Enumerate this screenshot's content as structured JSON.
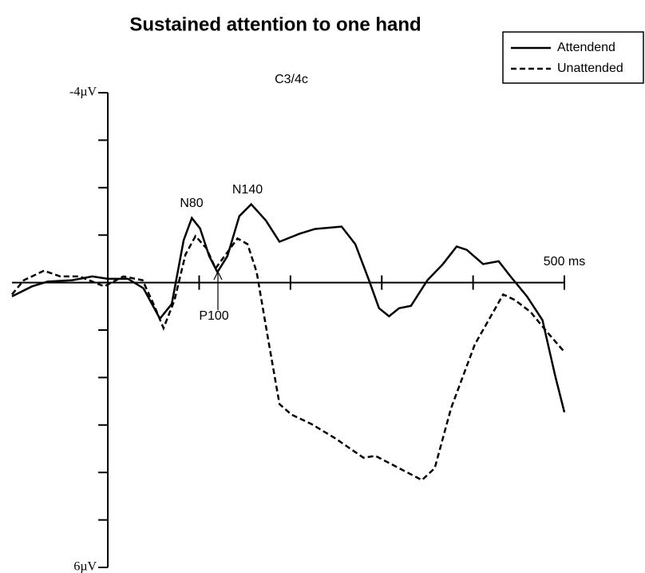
{
  "chart_data": {
    "type": "line",
    "title": "Sustained attention to one hand",
    "subtitle": "C3/4c",
    "y_inverted": true,
    "ylim": [
      -4,
      6
    ],
    "yticks": [
      {
        "value": -4,
        "label": "-4µV"
      },
      {
        "value": 6,
        "label": "6µV"
      }
    ],
    "yminorticks": [
      -3,
      -2,
      -1,
      0,
      1,
      2,
      3,
      4,
      5
    ],
    "xlim": [
      -105,
      500
    ],
    "xticks": [
      {
        "value": 500,
        "label": "500 ms"
      }
    ],
    "xminorticks": [
      100,
      200,
      300,
      400
    ],
    "legend": "top-right",
    "annotations": [
      "N80",
      "N140",
      "P100"
    ],
    "series": [
      {
        "name": "Attendend",
        "color": "#000000",
        "dash": false,
        "x": [
          -105,
          -83,
          -66,
          -39,
          -17,
          0,
          22,
          39,
          57,
          70,
          83,
          92,
          101,
          111,
          120,
          131,
          144,
          157,
          173,
          188,
          210,
          227,
          256,
          271,
          286,
          297,
          308,
          319,
          332,
          350,
          367,
          382,
          393,
          411,
          428,
          441,
          459,
          476,
          490,
          500
        ],
        "values": [
          0.29,
          0.08,
          -0.02,
          -0.05,
          -0.13,
          -0.08,
          -0.08,
          0.12,
          0.76,
          0.45,
          -0.89,
          -1.36,
          -1.14,
          -0.56,
          -0.22,
          -0.56,
          -1.4,
          -1.65,
          -1.31,
          -0.86,
          -1.03,
          -1.13,
          -1.18,
          -0.81,
          -0.05,
          0.54,
          0.71,
          0.54,
          0.49,
          -0.05,
          -0.39,
          -0.76,
          -0.69,
          -0.39,
          -0.45,
          -0.13,
          0.29,
          0.79,
          1.97,
          2.73
        ]
      },
      {
        "name": "Unattended",
        "color": "#000000",
        "dash": true,
        "x": [
          -105,
          -92,
          -70,
          -52,
          -31,
          -4,
          17,
          38,
          50,
          61,
          73,
          85,
          96,
          108,
          118,
          131,
          142,
          153,
          163,
          175,
          188,
          201,
          223,
          249,
          280,
          293,
          319,
          344,
          358,
          376,
          402,
          433,
          446,
          463,
          481,
          500
        ],
        "values": [
          0.25,
          -0.05,
          -0.25,
          -0.13,
          -0.13,
          0.08,
          -0.13,
          -0.05,
          0.45,
          0.96,
          0.37,
          -0.59,
          -0.98,
          -0.72,
          -0.3,
          -0.64,
          -0.93,
          -0.81,
          -0.22,
          1.13,
          2.56,
          2.78,
          2.98,
          3.28,
          3.69,
          3.65,
          3.91,
          4.16,
          3.91,
          2.64,
          1.3,
          0.25,
          0.37,
          0.62,
          1.04,
          1.46
        ]
      }
    ]
  }
}
